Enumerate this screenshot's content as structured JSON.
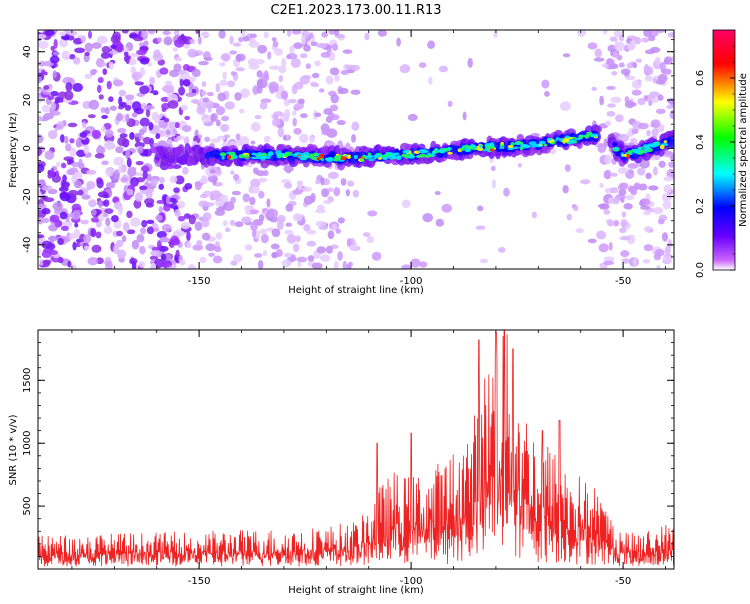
{
  "title": "C2E1.2023.173.00.11.R13",
  "chart_data": [
    {
      "type": "heatmap",
      "title": "C2E1.2023.173.00.11.R13",
      "xlabel": "Height of straight line (km)",
      "ylabel": "Frequency (Hz)",
      "xlim": [
        -188,
        -38
      ],
      "ylim": [
        -50,
        49
      ],
      "x_ticks": [
        -150,
        -100,
        -50
      ],
      "y_ticks": [
        -40,
        -20,
        0,
        20,
        40
      ],
      "x_tick_labels": [
        "-150",
        "-100",
        "-50"
      ],
      "y_tick_labels": [
        "-40",
        "-20",
        "0",
        "20",
        "40"
      ],
      "trace": {
        "x": [
          -146,
          -130,
          -115,
          -105,
          -95,
          -85,
          -75,
          -65,
          -55,
          -50,
          -38
        ],
        "y": [
          -3,
          -3,
          -4,
          -3,
          -2,
          0,
          1,
          3,
          6,
          -3,
          3
        ]
      },
      "quiet_band_x": [
        -113,
        -56
      ],
      "colorbar": {
        "label": "Normalized spectral amplitude",
        "range": [
          0,
          0.75
        ],
        "ticks": [
          0,
          0.2,
          0.4,
          0.6
        ],
        "tick_labels": [
          "0.0",
          "0.2",
          "0.4",
          "0.6"
        ],
        "colors": [
          "#ffffff",
          "#cc66ff",
          "#6600ff",
          "#0000ff",
          "#00ffff",
          "#00ff00",
          "#ffff00",
          "#ff0000",
          "#ff0066"
        ]
      }
    },
    {
      "type": "line",
      "xlabel": "Height of straight line (km)",
      "ylabel": "SNR (10 * v/v)",
      "xlim": [
        -188,
        -38
      ],
      "ylim": [
        0,
        1900
      ],
      "x_ticks": [
        -150,
        -100,
        -50
      ],
      "y_ticks": [
        500,
        1000,
        1500
      ],
      "x_tick_labels": [
        "-150",
        "-100",
        "-50"
      ],
      "y_tick_labels": [
        "500",
        "1000",
        "1500"
      ],
      "series": [
        {
          "color": "#ee2222",
          "x": [
            -188,
            -180,
            -170,
            -160,
            -150,
            -140,
            -130,
            -120,
            -112,
            -108,
            -104,
            -100,
            -96,
            -92,
            -88,
            -84,
            -82,
            -80,
            -78,
            -76,
            -72,
            -68,
            -64,
            -60,
            -56,
            -52,
            -48,
            -44,
            -40,
            -38
          ],
          "y": [
            230,
            240,
            250,
            255,
            265,
            275,
            280,
            300,
            340,
            560,
            680,
            640,
            720,
            760,
            900,
            1150,
            1500,
            1650,
            1750,
            1400,
            1050,
            900,
            760,
            650,
            560,
            330,
            250,
            270,
            320,
            300
          ],
          "peaks": [
            {
              "x": -80,
              "y": 1880
            },
            {
              "x": -78,
              "y": 1900
            },
            {
              "x": -84,
              "y": 1820
            },
            {
              "x": -76,
              "y": 1750
            },
            {
              "x": -69,
              "y": 1100
            },
            {
              "x": -65,
              "y": 1180
            },
            {
              "x": -108,
              "y": 1000
            },
            {
              "x": -100,
              "y": 1080
            }
          ]
        }
      ]
    }
  ]
}
